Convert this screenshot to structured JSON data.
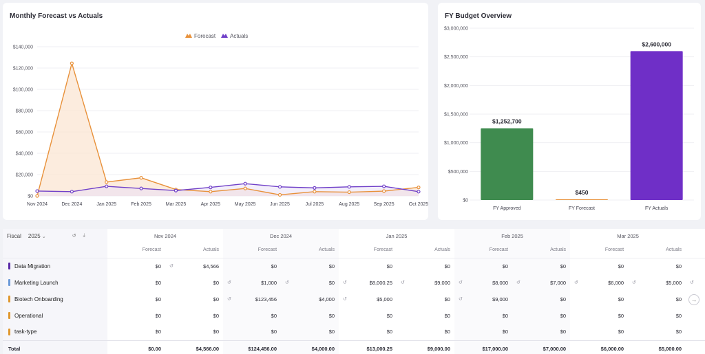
{
  "line_chart": {
    "title": "Monthly Forecast vs Actuals",
    "legend": [
      "Forecast",
      "Actuals"
    ],
    "colors": {
      "forecast": "#e8913a",
      "actuals": "#6f3fc8",
      "forecast_fill": "#fbe6d3",
      "actuals_fill": "#e9e0f6"
    },
    "chart_data": {
      "type": "area",
      "x": [
        "Nov 2024",
        "Dec 2024",
        "Jan 2025",
        "Feb 2025",
        "Mar 2025",
        "Apr 2025",
        "May 2025",
        "Jun 2025",
        "Jul 2025",
        "Aug 2025",
        "Sep 2025",
        "Oct 2025"
      ],
      "series": [
        {
          "name": "Forecast",
          "values": [
            0,
            124456,
            13000,
            17000,
            6000,
            4000,
            7000,
            1000,
            4000,
            3500,
            4500,
            8000
          ]
        },
        {
          "name": "Actuals",
          "values": [
            4566,
            4000,
            9000,
            7000,
            5000,
            8000,
            11500,
            8500,
            7500,
            8500,
            9000,
            4000
          ]
        }
      ],
      "ylim": [
        0,
        140000
      ],
      "yticks": [
        "$0",
        "$20,000",
        "$40,000",
        "$60,000",
        "$80,000",
        "$100,000",
        "$120,000",
        "$140,000"
      ],
      "ytick_values": [
        0,
        20000,
        40000,
        60000,
        80000,
        100000,
        120000,
        140000
      ],
      "legend_position": "top-center",
      "grid": true
    }
  },
  "bar_chart": {
    "title": "FY Budget Overview",
    "chart_data": {
      "type": "bar",
      "categories": [
        "FY Approved",
        "FY Forecast",
        "FY Actuals"
      ],
      "values": [
        1252700,
        450,
        2600000
      ],
      "value_labels": [
        "$1,252,700",
        "$450",
        "$2,600,000"
      ],
      "colors": [
        "#3f8b4f",
        "#e8913a",
        "#6f2fc7"
      ],
      "ylim": [
        0,
        3000000
      ],
      "yticks": [
        "$0",
        "$500,000",
        "$1,000,000",
        "$1,500,000",
        "$2,000,000",
        "$2,500,000",
        "$3,000,000"
      ],
      "ytick_values": [
        0,
        500000,
        1000000,
        1500000,
        2000000,
        2500000,
        3000000
      ],
      "grid": true
    }
  },
  "grid": {
    "fiscal_label": "Fiscal",
    "fiscal_year": "2025",
    "months": [
      "Nov 2024",
      "Dec 2024",
      "Jan 2025",
      "Feb 2025",
      "Mar 2025"
    ],
    "sub_headers": [
      "Forecast",
      "Actuals"
    ],
    "rows": [
      {
        "label": "Data Migration",
        "color": "#5a2aa8",
        "cells": [
          "$0",
          "$4,566",
          "$0",
          "$0",
          "$0",
          "$0",
          "$0",
          "$0",
          "$0",
          "$0"
        ],
        "marks": [
          false,
          true,
          false,
          false,
          false,
          false,
          false,
          false,
          false,
          false
        ]
      },
      {
        "label": "Marketing Launch",
        "color": "#6b9ad8",
        "cells": [
          "$0",
          "$0",
          "$1,000",
          "$0",
          "$8,000.25",
          "$9,000",
          "$8,000",
          "$7,000",
          "$6,000",
          "$5,000"
        ],
        "marks": [
          false,
          false,
          true,
          true,
          true,
          true,
          true,
          true,
          true,
          true
        ]
      },
      {
        "label": "Biotech Onboarding",
        "color": "#e0982e",
        "cells": [
          "$0",
          "$0",
          "$123,456",
          "$4,000",
          "$5,000",
          "$0",
          "$9,000",
          "$0",
          "$0",
          "$0"
        ],
        "marks": [
          false,
          false,
          true,
          false,
          true,
          false,
          true,
          false,
          false,
          false
        ]
      },
      {
        "label": "Operational",
        "color": "#e0982e",
        "cells": [
          "$0",
          "$0",
          "$0",
          "$0",
          "$0",
          "$0",
          "$0",
          "$0",
          "$0",
          "$0"
        ],
        "marks": [
          false,
          false,
          false,
          false,
          false,
          false,
          false,
          false,
          false,
          false
        ]
      },
      {
        "label": "task-type",
        "color": "#e0982e",
        "cells": [
          "$0",
          "$0",
          "$0",
          "$0",
          "$0",
          "$0",
          "$0",
          "$0",
          "$0",
          "$0"
        ],
        "marks": [
          false,
          false,
          false,
          false,
          false,
          false,
          false,
          false,
          false,
          false
        ]
      }
    ],
    "total_label": "Total",
    "totals": [
      "$0.00",
      "$4,566.00",
      "$124,456.00",
      "$4,000.00",
      "$13,000.25",
      "$9,000.00",
      "$17,000.00",
      "$7,000.00",
      "$6,000.00",
      "$5,000.00"
    ]
  },
  "icons": {
    "refresh": "refresh-icon",
    "download": "download-icon",
    "next": "next-arrow-icon",
    "chevron": "chevron-down-icon"
  }
}
